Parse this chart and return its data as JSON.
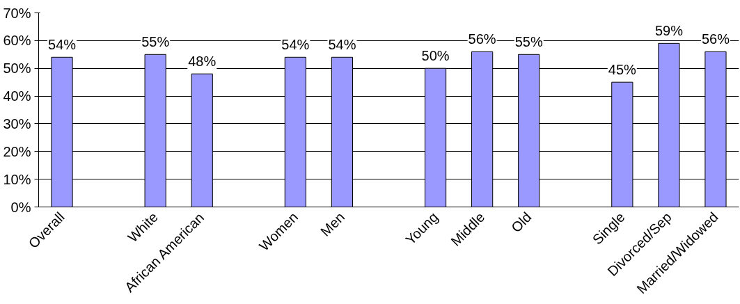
{
  "chart_data": {
    "type": "bar",
    "categories": [
      "Overall",
      null,
      "White",
      "African American",
      null,
      "Women",
      "Men",
      null,
      "Young",
      "Middle",
      "Old",
      null,
      "Single",
      "Divorced/Sep",
      "Married/Widowed"
    ],
    "values": [
      54,
      null,
      55,
      48,
      null,
      54,
      54,
      null,
      50,
      56,
      55,
      null,
      45,
      59,
      56
    ],
    "value_labels": [
      "54%",
      null,
      "55%",
      "48%",
      null,
      "54%",
      "54%",
      null,
      "50%",
      "56%",
      "55%",
      null,
      "45%",
      "59%",
      "56%"
    ],
    "color": "#9999ff",
    "ylim": [
      0,
      70
    ],
    "yticks": [
      {
        "value": 0,
        "label": "0%"
      },
      {
        "value": 10,
        "label": "10%"
      },
      {
        "value": 20,
        "label": "20%"
      },
      {
        "value": 30,
        "label": "30%"
      },
      {
        "value": 40,
        "label": "40%"
      },
      {
        "value": 50,
        "label": "50%"
      },
      {
        "value": 60,
        "label": "60%"
      },
      {
        "value": 70,
        "label": "70%"
      }
    ],
    "grid": "y"
  }
}
